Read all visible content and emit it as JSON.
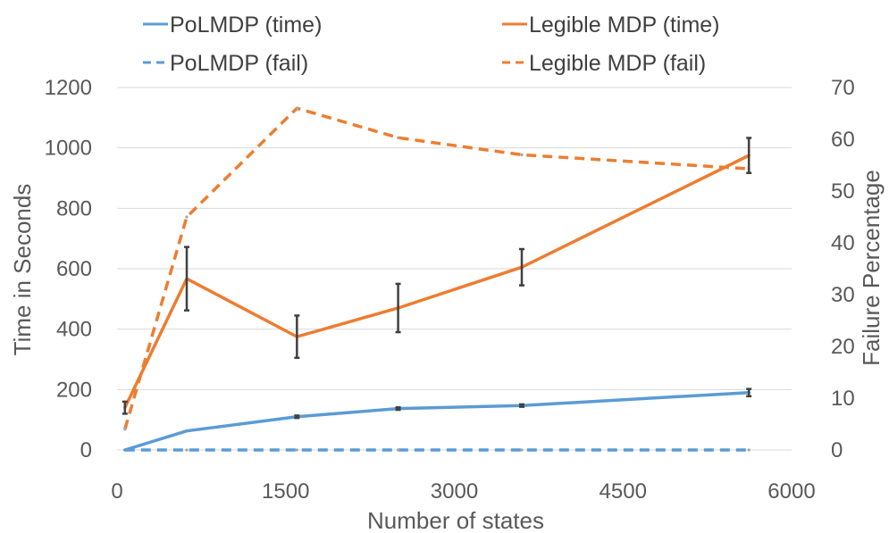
{
  "chart_data": {
    "type": "line",
    "xlabel": "Number of states",
    "ylabel": "Time in Seconds",
    "y2label": "Failure Percentage",
    "xlim": [
      0,
      6000
    ],
    "ylim": [
      0,
      1200
    ],
    "y2lim": [
      0,
      70
    ],
    "x_ticks": [
      "0",
      "1500",
      "3000",
      "4500",
      "6000"
    ],
    "y_ticks": [
      "0",
      "200",
      "400",
      "600",
      "800",
      "1000",
      "1200"
    ],
    "y2_ticks": [
      "0",
      "10",
      "20",
      "30",
      "40",
      "50",
      "60",
      "70"
    ],
    "grid": "horizontal",
    "legend_position": "top",
    "series": [
      {
        "name": "PoLMDP (time)",
        "axis": "left",
        "style": "solid",
        "color": "#5b9bd5",
        "x": [
          70,
          620,
          1600,
          2500,
          3600,
          5620
        ],
        "values": [
          0,
          63,
          110,
          137,
          147,
          190
        ],
        "errors": [
          0,
          0,
          4,
          4,
          4,
          12
        ]
      },
      {
        "name": "Legible MDP (time)",
        "axis": "left",
        "style": "solid",
        "color": "#ed7d31",
        "x": [
          70,
          620,
          1600,
          2500,
          3600,
          5620
        ],
        "values": [
          140,
          567,
          375,
          470,
          605,
          975
        ],
        "errors": [
          20,
          105,
          70,
          80,
          60,
          58
        ]
      },
      {
        "name": "PoLMDP (fail)",
        "axis": "right",
        "style": "dashed",
        "color": "#5b9bd5",
        "x": [
          70,
          620,
          1600,
          2500,
          3600,
          5620
        ],
        "values": [
          0,
          0,
          0,
          0,
          0,
          0
        ]
      },
      {
        "name": "Legible MDP (fail)",
        "axis": "right",
        "style": "dashed",
        "color": "#ed7d31",
        "x": [
          70,
          620,
          1600,
          2500,
          3600,
          5620
        ],
        "values": [
          4,
          45,
          66,
          60.3,
          57,
          54.3
        ]
      }
    ]
  }
}
